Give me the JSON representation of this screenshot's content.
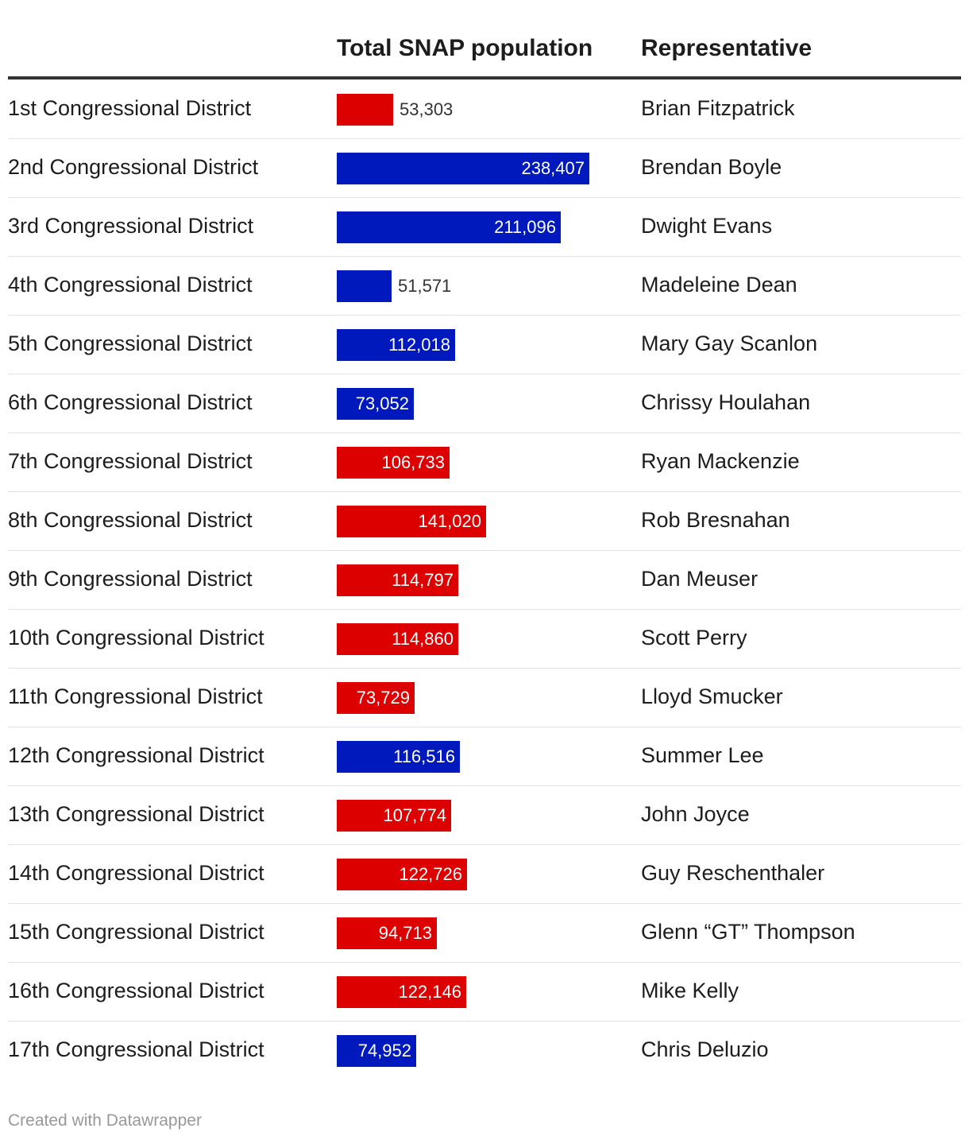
{
  "table": {
    "col_district": "",
    "col_population": "Total SNAP population",
    "col_representative": "Representative"
  },
  "footer": {
    "credit": "Created with Datawrapper"
  },
  "colors": {
    "R": "#dd0000",
    "D": "#0019bd"
  },
  "chart_data": {
    "type": "table",
    "columns": [
      "",
      "Total SNAP population",
      "Representative"
    ],
    "value_column": "Total SNAP population",
    "xlim": [
      0,
      238407
    ],
    "rows": [
      {
        "district": "1st Congressional District",
        "value": 53303,
        "label": "53,303",
        "representative": "Brian Fitzpatrick",
        "party": "R"
      },
      {
        "district": "2nd Congressional District",
        "value": 238407,
        "label": "238,407",
        "representative": "Brendan Boyle",
        "party": "D"
      },
      {
        "district": "3rd Congressional District",
        "value": 211096,
        "label": "211,096",
        "representative": "Dwight Evans",
        "party": "D"
      },
      {
        "district": "4th Congressional District",
        "value": 51571,
        "label": "51,571",
        "representative": "Madeleine Dean",
        "party": "D"
      },
      {
        "district": "5th Congressional District",
        "value": 112018,
        "label": "112,018",
        "representative": "Mary Gay Scanlon",
        "party": "D"
      },
      {
        "district": "6th Congressional District",
        "value": 73052,
        "label": "73,052",
        "representative": "Chrissy Houlahan",
        "party": "D"
      },
      {
        "district": "7th Congressional District",
        "value": 106733,
        "label": "106,733",
        "representative": "Ryan Mackenzie",
        "party": "R"
      },
      {
        "district": "8th Congressional District",
        "value": 141020,
        "label": "141,020",
        "representative": "Rob Bresnahan",
        "party": "R"
      },
      {
        "district": "9th Congressional District",
        "value": 114797,
        "label": "114,797",
        "representative": "Dan Meuser",
        "party": "R"
      },
      {
        "district": "10th Congressional District",
        "value": 114860,
        "label": "114,860",
        "representative": "Scott Perry",
        "party": "R"
      },
      {
        "district": "11th Congressional District",
        "value": 73729,
        "label": "73,729",
        "representative": "Lloyd Smucker",
        "party": "R"
      },
      {
        "district": "12th Congressional District",
        "value": 116516,
        "label": "116,516",
        "representative": "Summer Lee",
        "party": "D"
      },
      {
        "district": "13th Congressional District",
        "value": 107774,
        "label": "107,774",
        "representative": "John Joyce",
        "party": "R"
      },
      {
        "district": "14th Congressional District",
        "value": 122726,
        "label": "122,726",
        "representative": "Guy Reschenthaler",
        "party": "R"
      },
      {
        "district": "15th Congressional District",
        "value": 94713,
        "label": "94,713",
        "representative": "Glenn “GT” Thompson",
        "party": "R"
      },
      {
        "district": "16th Congressional District",
        "value": 122146,
        "label": "122,146",
        "representative": "Mike Kelly",
        "party": "R"
      },
      {
        "district": "17th Congressional District",
        "value": 74952,
        "label": "74,952",
        "representative": "Chris Deluzio",
        "party": "D"
      }
    ]
  }
}
